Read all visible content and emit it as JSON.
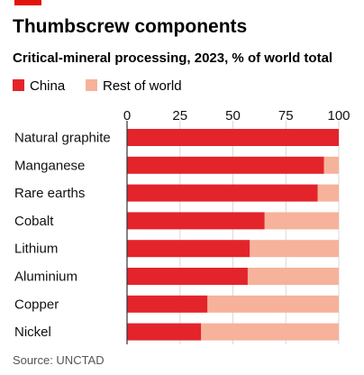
{
  "colors": {
    "accent": "#e3120b",
    "china": "#e3242b",
    "rest_of_world": "#f6b29a",
    "text": "#111111",
    "source": "#555555",
    "axis": "#333333"
  },
  "chart_data": {
    "type": "bar",
    "stacked": true,
    "orientation": "horizontal",
    "title": "Thumbscrew components",
    "subtitle": "Critical-mineral processing, 2023, % of world total",
    "source": "Source: UNCTAD",
    "xlim": [
      0,
      100
    ],
    "xticks": [
      0,
      25,
      50,
      75,
      100
    ],
    "legend_position": "top-left",
    "categories": [
      "Natural graphite",
      "Manganese",
      "Rare earths",
      "Cobalt",
      "Lithium",
      "Aluminium",
      "Copper",
      "Nickel"
    ],
    "series": [
      {
        "name": "China",
        "color": "#e3242b",
        "values": [
          100,
          93,
          90,
          65,
          58,
          57,
          38,
          35
        ]
      },
      {
        "name": "Rest of world",
        "color": "#f6b29a",
        "values": [
          0,
          7,
          10,
          35,
          42,
          43,
          62,
          65
        ]
      }
    ]
  }
}
